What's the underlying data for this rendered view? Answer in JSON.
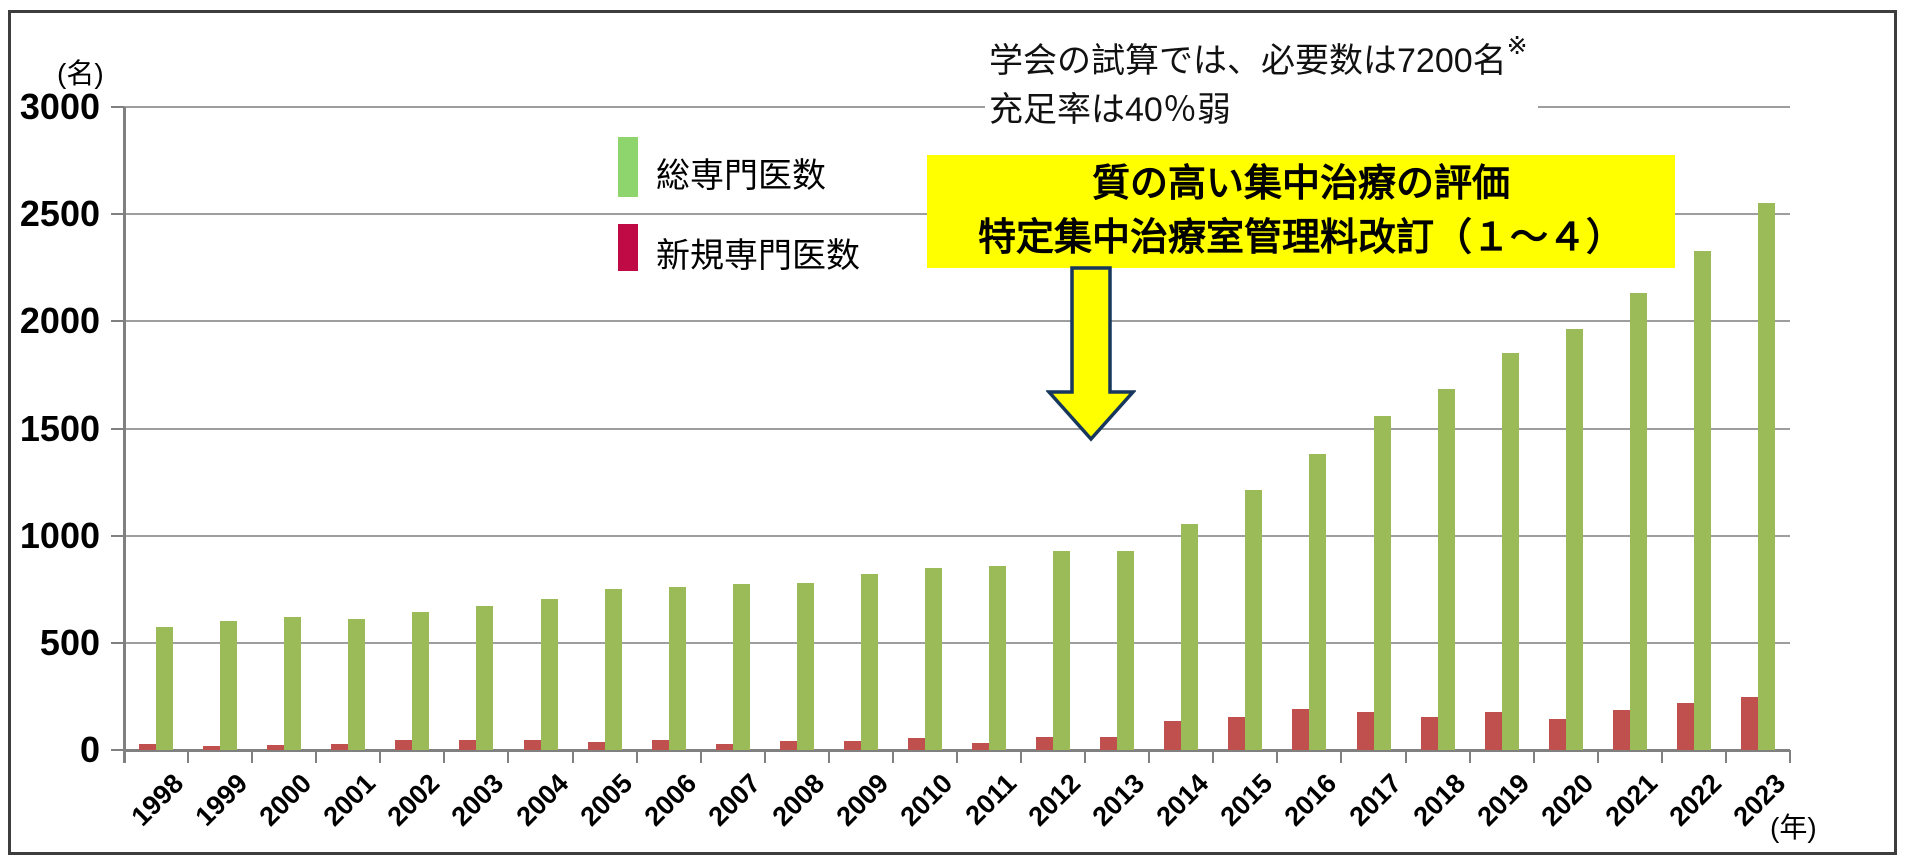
{
  "chart_data": {
    "type": "bar",
    "categories": [
      "1998",
      "1999",
      "2000",
      "2001",
      "2002",
      "2003",
      "2004",
      "2005",
      "2006",
      "2007",
      "2008",
      "2009",
      "2010",
      "2011",
      "2012",
      "2013",
      "2014",
      "2015",
      "2016",
      "2017",
      "2018",
      "2019",
      "2020",
      "2021",
      "2022",
      "2023"
    ],
    "series": [
      {
        "name": "新規専門医数",
        "color": "#C0504D",
        "legend_color": "#C00A46",
        "values": [
          30,
          18,
          22,
          30,
          45,
          45,
          48,
          36,
          48,
          26,
          44,
          40,
          58,
          34,
          62,
          60,
          133,
          155,
          190,
          175,
          153,
          177,
          145,
          188,
          220,
          248
        ]
      },
      {
        "name": "総専門医数",
        "color": "#9BBB59",
        "legend_color": "#8DD56C",
        "values": [
          575,
          600,
          620,
          610,
          645,
          670,
          705,
          750,
          760,
          775,
          780,
          820,
          850,
          860,
          930,
          930,
          1055,
          1215,
          1380,
          1560,
          1685,
          1850,
          1965,
          2130,
          2330,
          2550
        ]
      }
    ],
    "bar_order_note": "red (新規) bar drawn left of green (総) bar in each year pair",
    "title": "",
    "xlabel": "(年)",
    "ylabel": "(名)",
    "ylim": [
      0,
      3000
    ],
    "ytick_interval": 500,
    "yticks": [
      "3000",
      "2500",
      "2000",
      "1500",
      "1000",
      "500",
      "0"
    ],
    "grid": true,
    "legend_position": "top-center"
  },
  "axis": {
    "y_unit": "(名)",
    "x_unit": "(年)"
  },
  "legend": {
    "item_total": "総専門医数",
    "item_new": "新規専門医数"
  },
  "note": {
    "line1": "学会の試算では、必要数は7200名",
    "sup": "※",
    "line2": "充足率は40％弱"
  },
  "highlight": {
    "line1": "質の高い集中治療の評価",
    "line2": "特定集中治療室管理料改訂（１～４）",
    "bg_color": "#FFFF00",
    "arrow_outline": "#17375D"
  }
}
